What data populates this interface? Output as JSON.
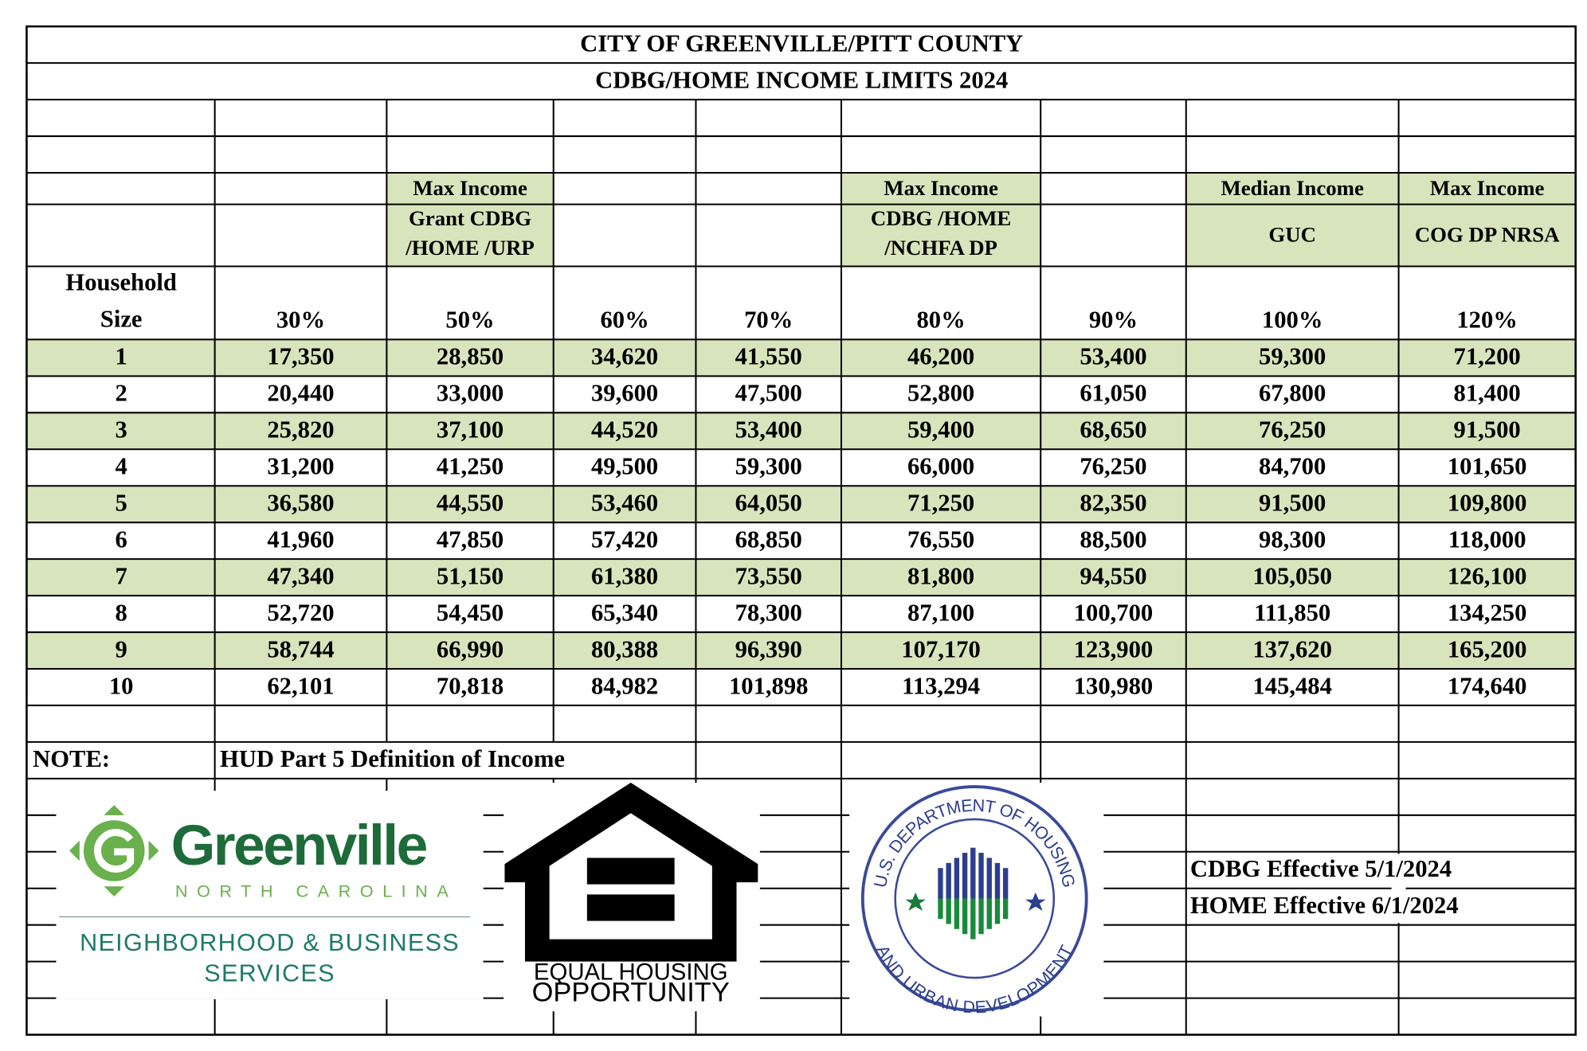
{
  "title": "CITY OF GREENVILLE/PITT COUNTY",
  "subtitle": "CDBG/HOME INCOME LIMITS 2024",
  "table": {
    "columns": [
      {
        "heading": [
          "Household",
          "Size"
        ]
      },
      {
        "heading": [
          "30%"
        ]
      },
      {
        "group": "Max Income",
        "sub": [
          "Grant CDBG",
          "/HOME /URP"
        ],
        "heading": [
          "50%"
        ]
      },
      {
        "heading": [
          "60%"
        ]
      },
      {
        "heading": [
          "70%"
        ]
      },
      {
        "group": "Max Income",
        "sub": [
          "CDBG  /HOME",
          "/NCHFA DP"
        ],
        "heading": [
          "80%"
        ]
      },
      {
        "heading": [
          "90%"
        ]
      },
      {
        "group": "Median Income",
        "sub": [
          "GUC"
        ],
        "heading": [
          "100%"
        ]
      },
      {
        "group": "Max Income",
        "sub": [
          "COG DP NRSA"
        ],
        "heading": [
          "120%"
        ]
      }
    ],
    "rows": [
      [
        "1",
        "17,350",
        "28,850",
        "34,620",
        "41,550",
        "46,200",
        "53,400",
        "59,300",
        "71,200"
      ],
      [
        "2",
        "20,440",
        "33,000",
        "39,600",
        "47,500",
        "52,800",
        "61,050",
        "67,800",
        "81,400"
      ],
      [
        "3",
        "25,820",
        "37,100",
        "44,520",
        "53,400",
        "59,400",
        "68,650",
        "76,250",
        "91,500"
      ],
      [
        "4",
        "31,200",
        "41,250",
        "49,500",
        "59,300",
        "66,000",
        "76,250",
        "84,700",
        "101,650"
      ],
      [
        "5",
        "36,580",
        "44,550",
        "53,460",
        "64,050",
        "71,250",
        "82,350",
        "91,500",
        "109,800"
      ],
      [
        "6",
        "41,960",
        "47,850",
        "57,420",
        "68,850",
        "76,550",
        "88,500",
        "98,300",
        "118,000"
      ],
      [
        "7",
        "47,340",
        "51,150",
        "61,380",
        "73,550",
        "81,800",
        "94,550",
        "105,050",
        "126,100"
      ],
      [
        "8",
        "52,720",
        "54,450",
        "65,340",
        "78,300",
        "87,100",
        "100,700",
        "111,850",
        "134,250"
      ],
      [
        "9",
        "58,744",
        "66,990",
        "80,388",
        "96,390",
        "107,170",
        "123,900",
        "137,620",
        "165,200"
      ],
      [
        "10",
        "62,101",
        "70,818",
        "84,982",
        "101,898",
        "113,294",
        "130,980",
        "145,484",
        "174,640"
      ]
    ]
  },
  "note": {
    "label": "NOTE:",
    "text": "HUD Part 5 Definition of Income"
  },
  "effective": [
    "CDBG Effective 5/1/2024",
    "HOME Effective 6/1/2024"
  ],
  "logos": {
    "greenville": {
      "name": "Greenville",
      "state": "NORTH CAROLINA",
      "dept": [
        "NEIGHBORHOOD & BUSINESS",
        "SERVICES"
      ]
    },
    "equal_housing": [
      "EQUAL HOUSING",
      "OPPORTUNITY"
    ],
    "hud": [
      "U.S. DEPARTMENT OF HOUSING",
      "AND URBAN DEVELOPMENT"
    ]
  }
}
